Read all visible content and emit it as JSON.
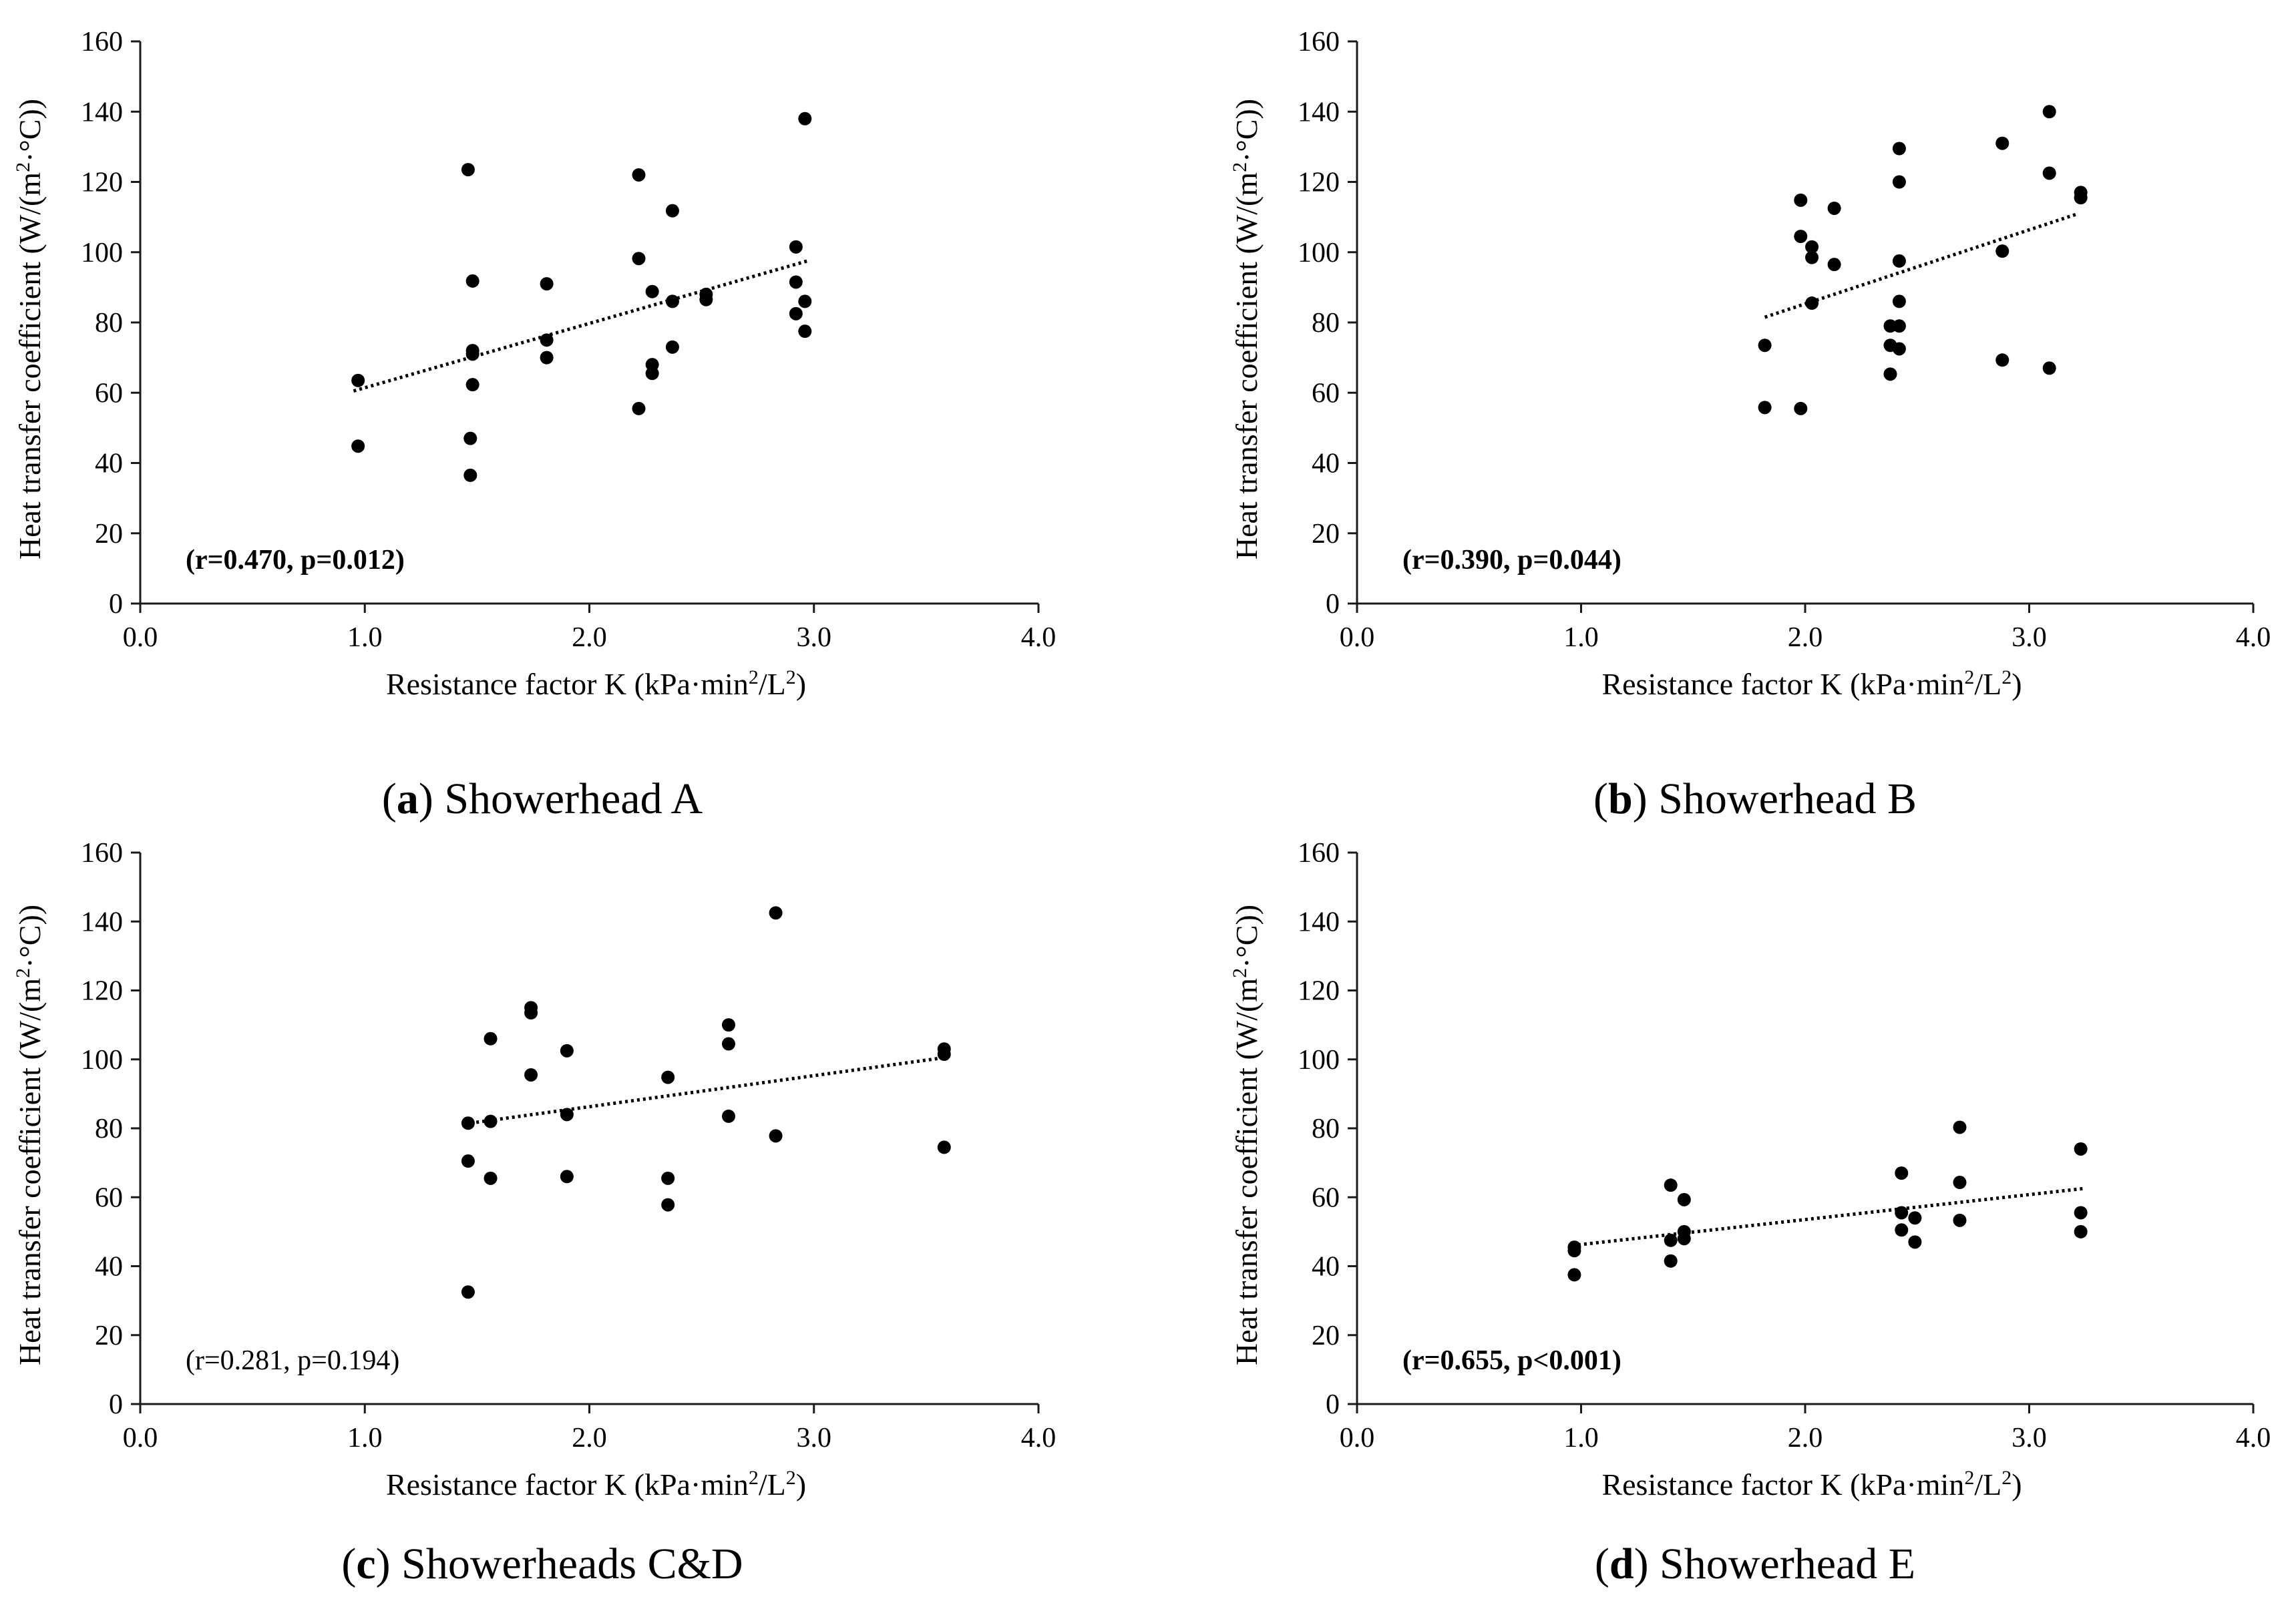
{
  "colors": {
    "axis": "#1a1a1a",
    "point": "#000000",
    "trend": "#000000",
    "background": "#ffffff"
  },
  "common_axes": {
    "xlabel_prefix": "Resistance factor K (kPa·min",
    "xlabel_sup1": "2",
    "xlabel_mid": "/L",
    "xlabel_sup2": "2",
    "xlabel_suffix": ")",
    "ylabel_prefix": "Heat transfer  coefficient  (W/(m",
    "ylabel_sup": "2",
    "ylabel_suffix": "·°C))",
    "xlim": [
      0,
      4
    ],
    "ylim": [
      0,
      160
    ],
    "xticks": [
      "0.0",
      "1.0",
      "2.0",
      "3.0",
      "4.0"
    ],
    "yticks": [
      "0",
      "20",
      "40",
      "60",
      "80",
      "100",
      "120",
      "140",
      "160"
    ]
  },
  "chart_data": [
    {
      "type": "scatter",
      "caption_letter": "a",
      "caption_text": ") Showerhead A",
      "stat_text": "(r=0.470, p=0.012)",
      "stat_bold": true,
      "xlabel": "Resistance factor K (kPa·min2/L2)",
      "ylabel": "Heat transfer coefficient (W/(m2·°C))",
      "xlim": [
        0,
        4
      ],
      "ylim": [
        0,
        160
      ],
      "trendline": {
        "x": [
          0.95,
          2.97
        ],
        "y": [
          60.5,
          97.5
        ],
        "style": "dotted"
      },
      "points": [
        [
          0.97,
          63.5
        ],
        [
          0.97,
          44.8
        ],
        [
          1.46,
          123.5
        ],
        [
          1.47,
          47.0
        ],
        [
          1.47,
          36.5
        ],
        [
          1.48,
          91.8
        ],
        [
          1.48,
          72.0
        ],
        [
          1.48,
          71.0
        ],
        [
          1.48,
          62.3
        ],
        [
          1.81,
          91.0
        ],
        [
          1.81,
          75.0
        ],
        [
          1.81,
          70.0
        ],
        [
          2.22,
          122.0
        ],
        [
          2.22,
          98.2
        ],
        [
          2.22,
          55.5
        ],
        [
          2.28,
          88.8
        ],
        [
          2.28,
          68.0
        ],
        [
          2.28,
          65.5
        ],
        [
          2.37,
          111.8
        ],
        [
          2.37,
          86.0
        ],
        [
          2.37,
          73.0
        ],
        [
          2.52,
          88.0
        ],
        [
          2.52,
          86.5
        ],
        [
          2.92,
          101.5
        ],
        [
          2.92,
          91.5
        ],
        [
          2.92,
          82.5
        ],
        [
          2.96,
          138.0
        ],
        [
          2.96,
          86.0
        ],
        [
          2.96,
          77.5
        ]
      ]
    },
    {
      "type": "scatter",
      "caption_letter": "b",
      "caption_text": ") Showerhead B",
      "stat_text": "(r=0.390, p=0.044)",
      "stat_bold": true,
      "xlabel": "Resistance factor K (kPa·min2/L2)",
      "ylabel": "Heat transfer coefficient (W/(m2·°C))",
      "xlim": [
        0,
        4
      ],
      "ylim": [
        0,
        160
      ],
      "trendline": {
        "x": [
          1.82,
          3.22
        ],
        "y": [
          81.5,
          111.0
        ],
        "style": "dotted"
      },
      "points": [
        [
          1.82,
          73.5
        ],
        [
          1.82,
          55.8
        ],
        [
          1.98,
          114.8
        ],
        [
          1.98,
          104.5
        ],
        [
          1.98,
          55.5
        ],
        [
          2.03,
          101.5
        ],
        [
          2.03,
          98.5
        ],
        [
          2.03,
          85.5
        ],
        [
          2.13,
          112.5
        ],
        [
          2.13,
          96.5
        ],
        [
          2.38,
          79.0
        ],
        [
          2.38,
          73.5
        ],
        [
          2.38,
          65.3
        ],
        [
          2.42,
          129.5
        ],
        [
          2.42,
          120.0
        ],
        [
          2.42,
          97.5
        ],
        [
          2.42,
          86.0
        ],
        [
          2.42,
          79.0
        ],
        [
          2.42,
          72.5
        ],
        [
          2.88,
          131.0
        ],
        [
          2.88,
          100.3
        ],
        [
          2.88,
          69.3
        ],
        [
          3.09,
          140.0
        ],
        [
          3.09,
          122.5
        ],
        [
          3.09,
          67.0
        ],
        [
          3.23,
          117.0
        ],
        [
          3.23,
          115.5
        ]
      ]
    },
    {
      "type": "scatter",
      "caption_letter": "c",
      "caption_text": ") Showerheads C&D",
      "stat_text": "(r=0.281, p=0.194)",
      "stat_bold": false,
      "xlabel": "Resistance factor K (kPa·min2/L2)",
      "ylabel": "Heat transfer coefficient (W/(m2·°C))",
      "xlim": [
        0,
        4
      ],
      "ylim": [
        0,
        160
      ],
      "trendline": {
        "x": [
          1.47,
          3.58
        ],
        "y": [
          81.5,
          100.5
        ],
        "style": "dotted"
      },
      "points": [
        [
          1.46,
          81.5
        ],
        [
          1.46,
          70.5
        ],
        [
          1.46,
          32.5
        ],
        [
          1.56,
          106.0
        ],
        [
          1.56,
          82.0
        ],
        [
          1.56,
          65.5
        ],
        [
          1.74,
          115.0
        ],
        [
          1.74,
          113.5
        ],
        [
          1.74,
          95.5
        ],
        [
          1.9,
          102.5
        ],
        [
          1.9,
          84.0
        ],
        [
          1.9,
          66.0
        ],
        [
          2.35,
          94.8
        ],
        [
          2.35,
          65.5
        ],
        [
          2.35,
          57.8
        ],
        [
          2.62,
          110.0
        ],
        [
          2.62,
          104.5
        ],
        [
          2.62,
          83.5
        ],
        [
          2.83,
          142.5
        ],
        [
          2.83,
          77.8
        ],
        [
          3.58,
          103.0
        ],
        [
          3.58,
          101.5
        ],
        [
          3.58,
          74.5
        ]
      ]
    },
    {
      "type": "scatter",
      "caption_letter": "d",
      "caption_text": ") Showerhead E",
      "stat_text": "(r=0.655, p<0.001)",
      "stat_bold": true,
      "xlabel": "Resistance factor K (kPa·min2/L2)",
      "ylabel": "Heat transfer coefficient (W/(m2·°C))",
      "xlim": [
        0,
        4
      ],
      "ylim": [
        0,
        160
      ],
      "trendline": {
        "x": [
          0.96,
          3.24
        ],
        "y": [
          46.0,
          62.5
        ],
        "style": "dotted"
      },
      "points": [
        [
          0.97,
          45.5
        ],
        [
          0.97,
          44.5
        ],
        [
          0.97,
          37.5
        ],
        [
          1.4,
          63.5
        ],
        [
          1.4,
          47.5
        ],
        [
          1.4,
          41.5
        ],
        [
          1.46,
          59.3
        ],
        [
          1.46,
          50.0
        ],
        [
          1.46,
          48.0
        ],
        [
          2.43,
          67.0
        ],
        [
          2.43,
          55.5
        ],
        [
          2.43,
          50.5
        ],
        [
          2.49,
          54.0
        ],
        [
          2.49,
          47.0
        ],
        [
          2.69,
          80.3
        ],
        [
          2.69,
          64.3
        ],
        [
          2.69,
          53.3
        ],
        [
          3.23,
          74.0
        ],
        [
          3.23,
          55.5
        ],
        [
          3.23,
          50.0
        ]
      ]
    }
  ]
}
